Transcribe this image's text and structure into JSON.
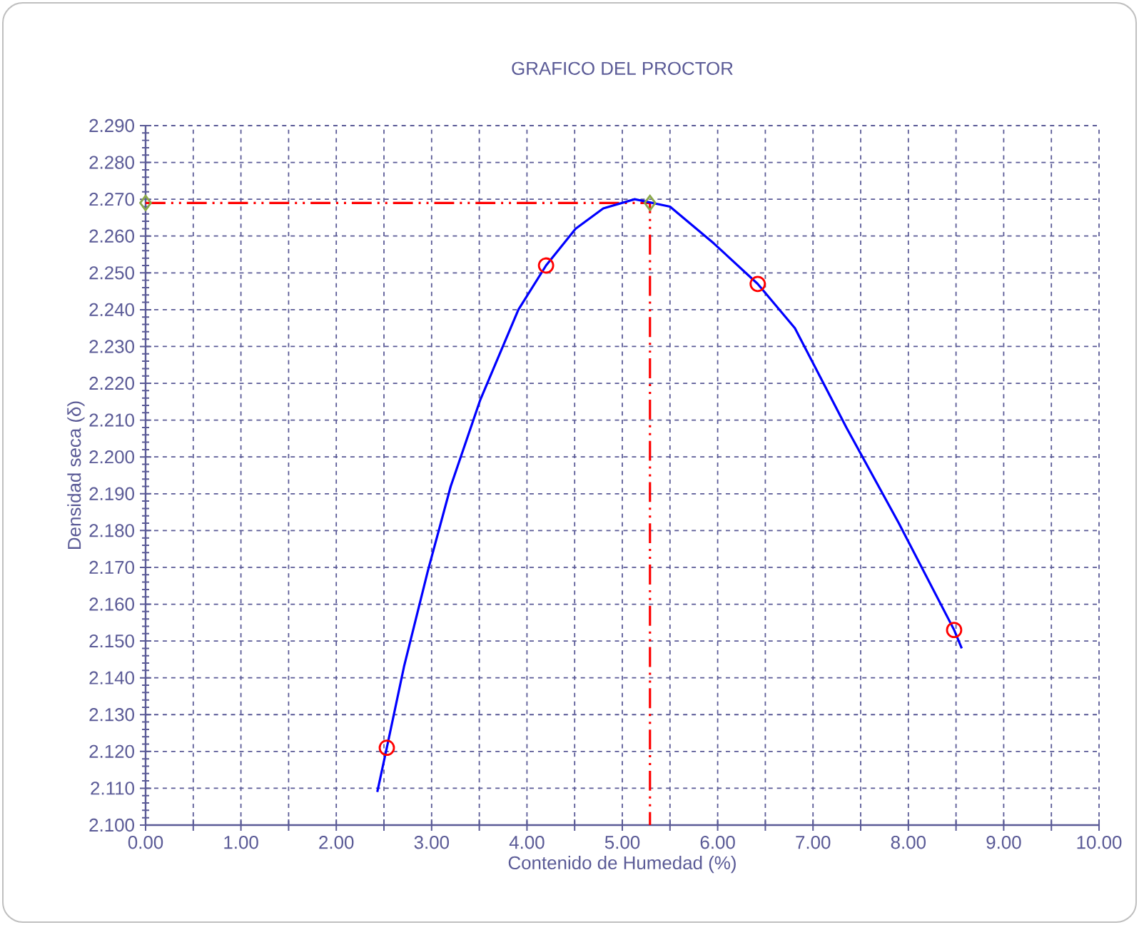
{
  "chart_data": {
    "type": "line",
    "title": "GRAFICO DEL PROCTOR",
    "xlabel": "Contenido de Humedad  (%)",
    "ylabel": "Densidad seca (δ)",
    "xlim": [
      0,
      10
    ],
    "ylim": [
      2.1,
      2.29
    ],
    "grid": true,
    "xticks": [
      {
        "value": 0,
        "label": "0.00"
      },
      {
        "value": 0.5,
        "label": null
      },
      {
        "value": 1,
        "label": "1.00"
      },
      {
        "value": 1.5,
        "label": null
      },
      {
        "value": 2,
        "label": "2.00"
      },
      {
        "value": 2.5,
        "label": null
      },
      {
        "value": 3,
        "label": "3.00"
      },
      {
        "value": 3.5,
        "label": null
      },
      {
        "value": 4,
        "label": "4.00"
      },
      {
        "value": 4.5,
        "label": null
      },
      {
        "value": 5,
        "label": "5.00"
      },
      {
        "value": 5.5,
        "label": null
      },
      {
        "value": 6,
        "label": "6.00"
      },
      {
        "value": 6.5,
        "label": null
      },
      {
        "value": 7,
        "label": "7.00"
      },
      {
        "value": 7.5,
        "label": null
      },
      {
        "value": 8,
        "label": "8.00"
      },
      {
        "value": 8.5,
        "label": null
      },
      {
        "value": 9,
        "label": "9.00"
      },
      {
        "value": 9.5,
        "label": null
      },
      {
        "value": 10,
        "label": "10.00"
      }
    ],
    "yticks": [
      {
        "value": 2.1,
        "label": "2.100"
      },
      {
        "value": 2.11,
        "label": "2.110"
      },
      {
        "value": 2.12,
        "label": "2.120"
      },
      {
        "value": 2.13,
        "label": "2.130"
      },
      {
        "value": 2.14,
        "label": "2.140"
      },
      {
        "value": 2.15,
        "label": "2.150"
      },
      {
        "value": 2.16,
        "label": "2.160"
      },
      {
        "value": 2.17,
        "label": "2.170"
      },
      {
        "value": 2.18,
        "label": "2.180"
      },
      {
        "value": 2.19,
        "label": "2.190"
      },
      {
        "value": 2.2,
        "label": "2.200"
      },
      {
        "value": 2.21,
        "label": "2.210"
      },
      {
        "value": 2.22,
        "label": "2.220"
      },
      {
        "value": 2.23,
        "label": "2.230"
      },
      {
        "value": 2.24,
        "label": "2.240"
      },
      {
        "value": 2.25,
        "label": "2.250"
      },
      {
        "value": 2.26,
        "label": "2.260"
      },
      {
        "value": 2.27,
        "label": "2.270"
      },
      {
        "value": 2.28,
        "label": "2.280"
      },
      {
        "value": 2.29,
        "label": "2.290"
      }
    ],
    "series": [
      {
        "color": "#ff0000",
        "line_style": "dashed",
        "marker": "none",
        "x": [
          0,
          5.29,
          5.29
        ],
        "values": [
          2.269,
          2.269,
          2.1
        ]
      },
      {
        "color": "#0000ff",
        "line_style": "solid",
        "marker": "none",
        "x": [
          2.43,
          2.53,
          2.71,
          2.96,
          3.2,
          3.51,
          3.91,
          4.2,
          4.51,
          4.8,
          5.13,
          5.5,
          5.96,
          6.42,
          6.81,
          7.35,
          7.9,
          8.48,
          8.56
        ],
        "values": [
          2.109,
          2.121,
          2.143,
          2.169,
          2.192,
          2.2155,
          2.24,
          2.252,
          2.262,
          2.2675,
          2.27,
          2.268,
          2.258,
          2.247,
          2.235,
          2.208,
          2.182,
          2.153,
          2.148
        ]
      },
      {
        "type": "scatter",
        "color": "#ff0000",
        "marker": "circle",
        "x": [
          2.53,
          4.2,
          6.42,
          8.48
        ],
        "values": [
          2.121,
          2.252,
          2.247,
          2.153
        ]
      },
      {
        "type": "scatter",
        "color": "#8aa84a",
        "marker": "diamond",
        "x": [
          0,
          5.29
        ],
        "values": [
          2.269,
          2.269
        ]
      }
    ]
  }
}
